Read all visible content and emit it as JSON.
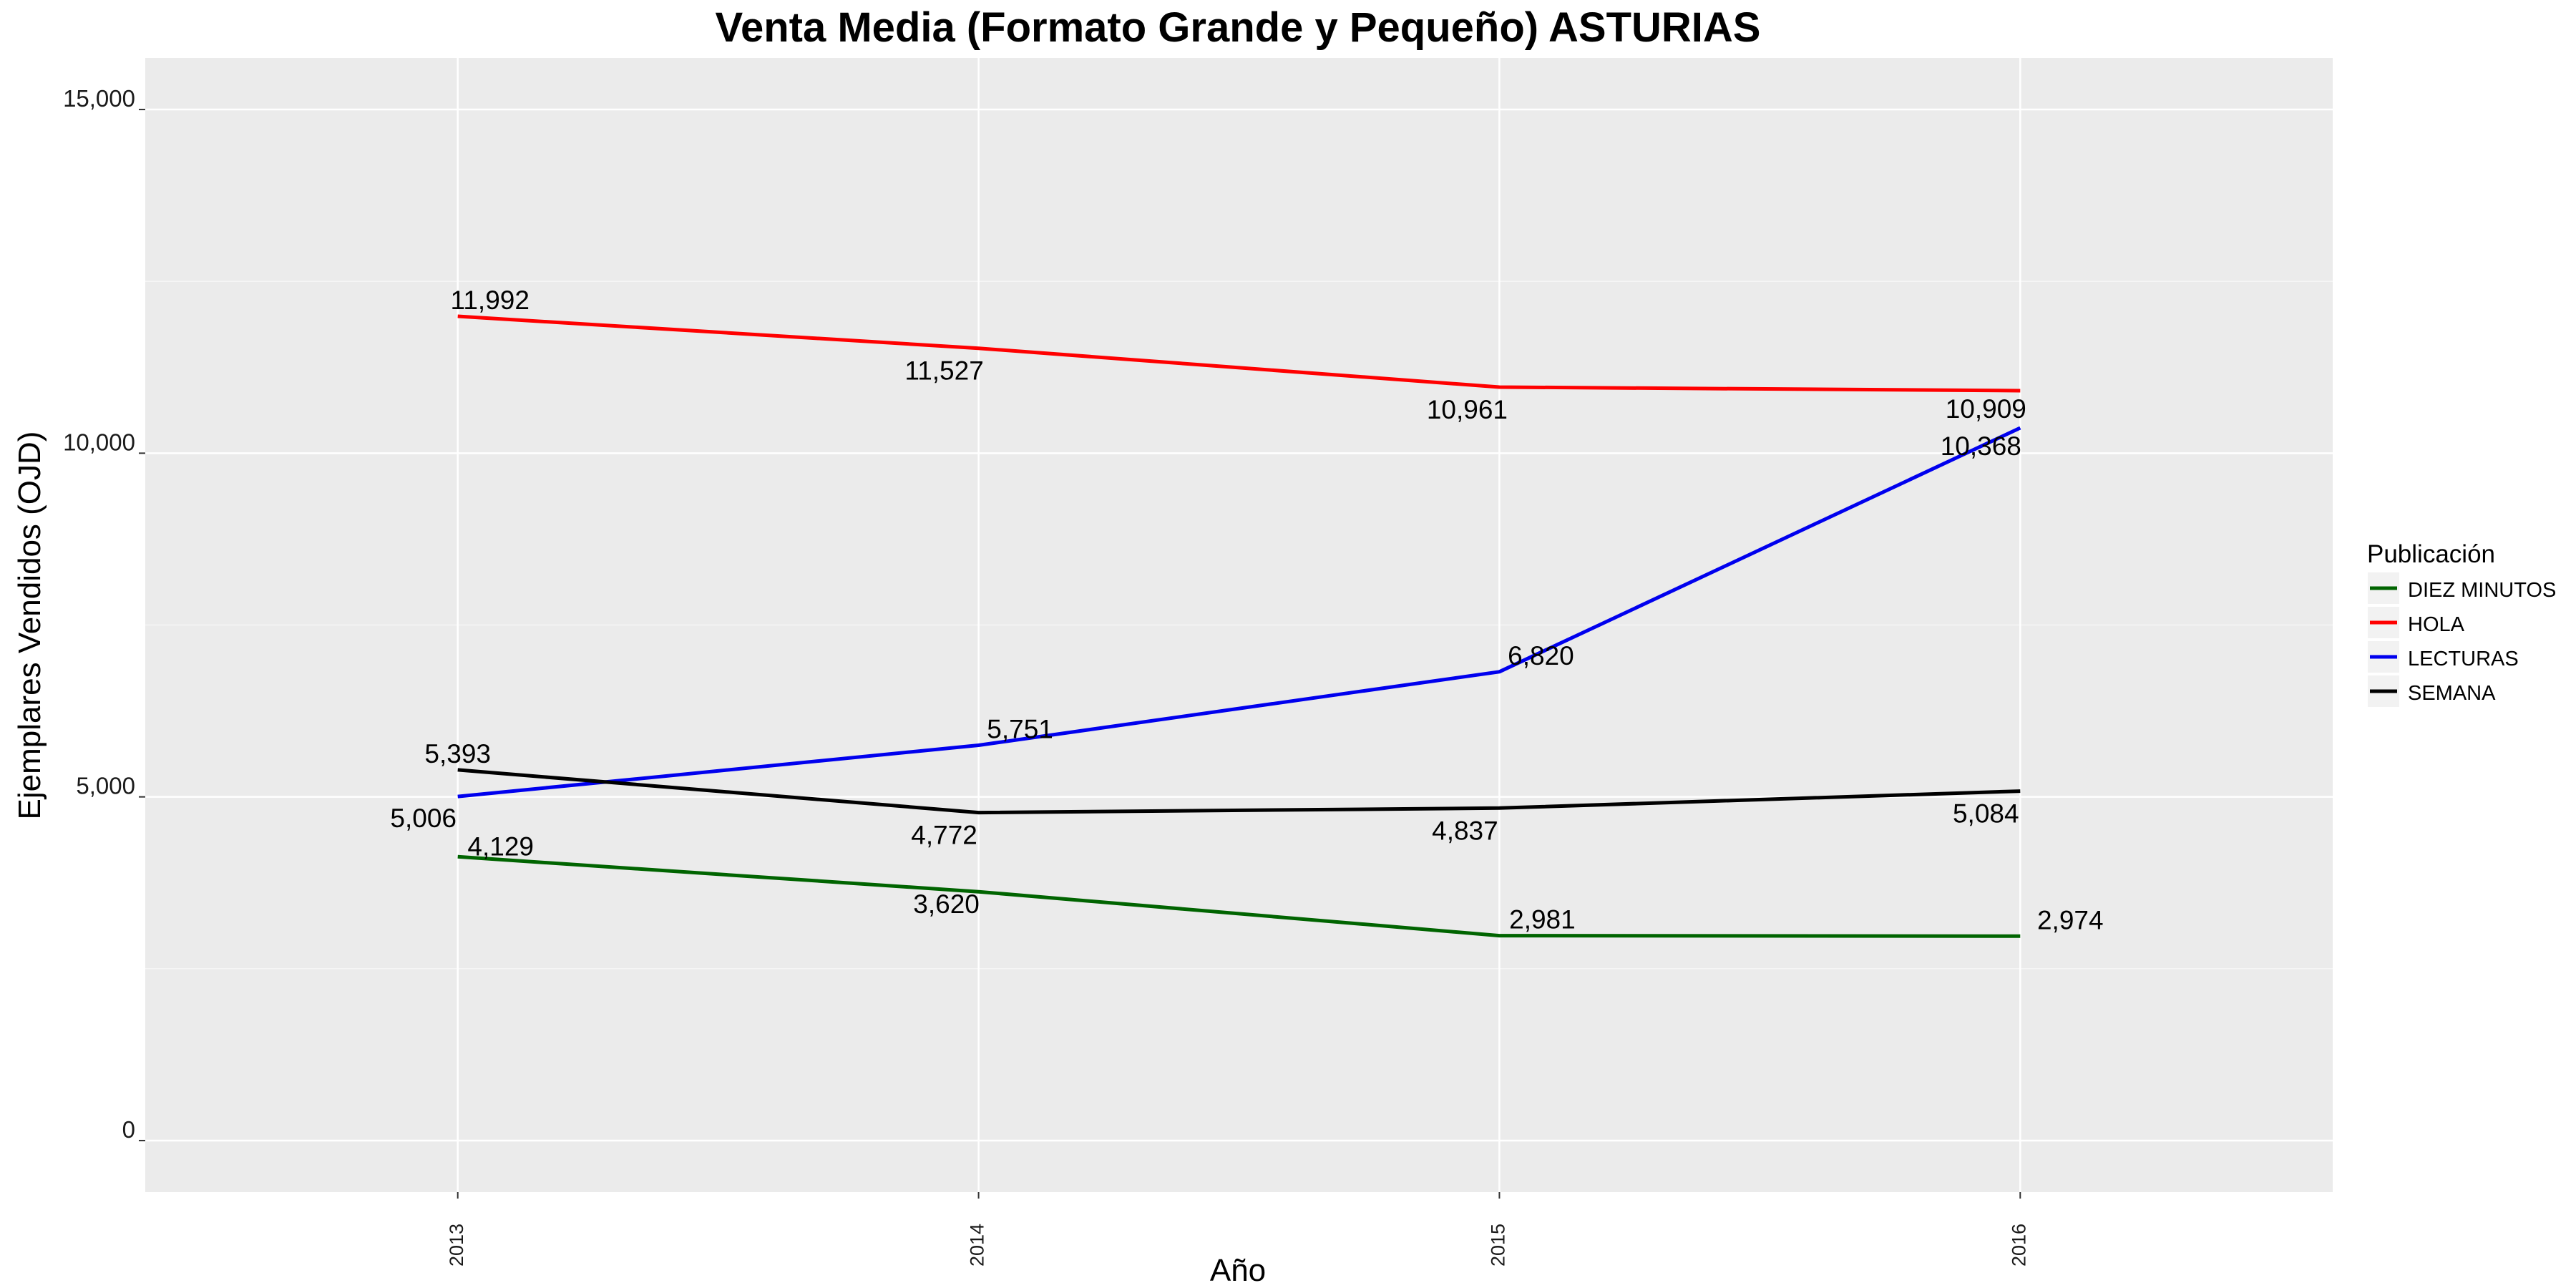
{
  "chart_data": {
    "type": "line",
    "title": "Venta Media (Formato Grande y Pequeño)  ASTURIAS",
    "xlabel": "Año",
    "ylabel": "Ejemplares Vendidos (OJD)",
    "x": [
      "2013",
      "2014",
      "2015",
      "2016"
    ],
    "xlim": [
      2012.4,
      2016.6
    ],
    "ylim": [
      -750,
      15750
    ],
    "yticks": [
      0,
      5000,
      10000,
      15000
    ],
    "ytick_labels": [
      "0",
      "5,000",
      "10,000",
      "15,000"
    ],
    "grid": true,
    "legend": {
      "title": "Publicación",
      "position": "right"
    },
    "series": [
      {
        "name": "DIEZ MINUTOS",
        "color": "#006400",
        "values": [
          4129,
          3620,
          2981,
          2974
        ],
        "labels": [
          "4,129",
          "3,620",
          "2,981",
          "2,974"
        ]
      },
      {
        "name": "HOLA",
        "color": "#ff0000",
        "values": [
          11992,
          11527,
          10961,
          10909
        ],
        "labels": [
          "11,992",
          "11,527",
          "10,961",
          "10,909"
        ]
      },
      {
        "name": "LECTURAS",
        "color": "#0000ee",
        "values": [
          5006,
          5751,
          6820,
          10368
        ],
        "labels": [
          "5,006",
          "5,751",
          "6,820",
          "10,368"
        ]
      },
      {
        "name": "SEMANA",
        "color": "#000000",
        "values": [
          5393,
          4772,
          4837,
          5084
        ],
        "labels": [
          "5,393",
          "4,772",
          "4,837",
          "5,084"
        ]
      }
    ]
  }
}
